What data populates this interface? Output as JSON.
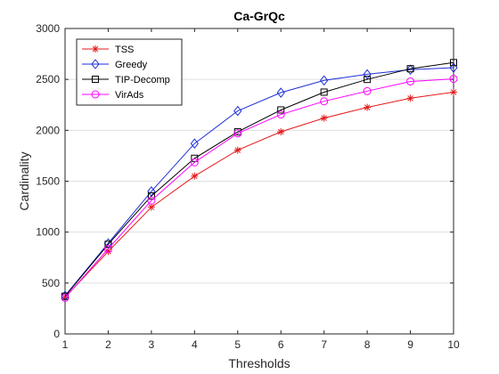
{
  "chart_data": {
    "type": "line",
    "title": "Ca-GrQc",
    "xlabel": "Thresholds",
    "ylabel": "Cardinality",
    "x": [
      1,
      2,
      3,
      4,
      5,
      6,
      7,
      8,
      9,
      10
    ],
    "xlim": [
      1,
      10
    ],
    "ylim": [
      0,
      3000
    ],
    "xticks": [
      "1",
      "2",
      "3",
      "4",
      "5",
      "6",
      "7",
      "8",
      "9",
      "10"
    ],
    "yticks": [
      "0",
      "500",
      "1000",
      "1500",
      "2000",
      "2500",
      "3000"
    ],
    "grid": true,
    "legend_position": "top-left",
    "series": [
      {
        "name": "TSS",
        "color": "#e41a1c",
        "marker": "asterisk",
        "values": [
          360,
          810,
          1245,
          1550,
          1805,
          1985,
          2120,
          2225,
          2315,
          2375
        ]
      },
      {
        "name": "Greedy",
        "color": "#1f2fd6",
        "marker": "diamond",
        "values": [
          375,
          890,
          1400,
          1870,
          2190,
          2370,
          2490,
          2550,
          2595,
          2615
        ]
      },
      {
        "name": "TIP-Decomp",
        "color": "#000000",
        "marker": "square",
        "values": [
          370,
          880,
          1355,
          1725,
          1985,
          2200,
          2375,
          2500,
          2605,
          2665
        ]
      },
      {
        "name": "VirAds",
        "color": "#ff00ff",
        "marker": "circle",
        "values": [
          355,
          835,
          1310,
          1685,
          1970,
          2155,
          2285,
          2385,
          2480,
          2505
        ]
      }
    ]
  }
}
